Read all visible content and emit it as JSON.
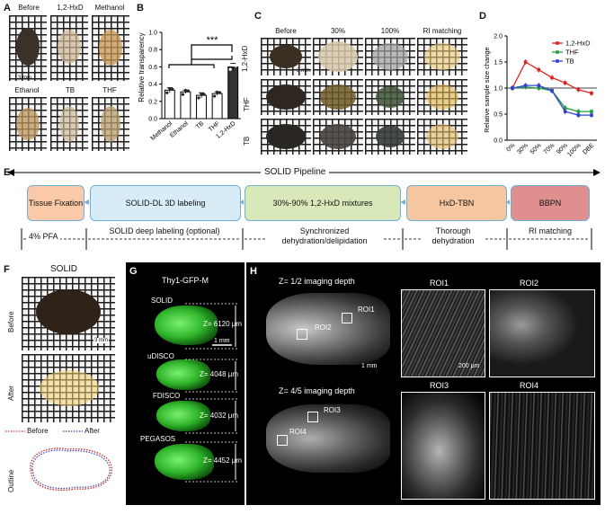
{
  "panels": {
    "A": "A",
    "B": "B",
    "C": "C",
    "D": "D",
    "E": "E",
    "F": "F",
    "G": "G",
    "H": "H"
  },
  "panelA": {
    "labels": [
      "Before",
      "1,2-HxD",
      "Methanol",
      "Ethanol",
      "TB",
      "THF"
    ],
    "scale": "3 mm"
  },
  "chart_b": {
    "type": "bar",
    "categories": [
      "Methanol",
      "Ethanol",
      "TB",
      "THF",
      "1,2-HxD"
    ],
    "values": [
      0.33,
      0.31,
      0.27,
      0.29,
      0.6
    ],
    "errors": [
      0.03,
      0.02,
      0.03,
      0.02,
      0.04
    ],
    "ylabel": "Relative transparency",
    "ylim": [
      0,
      1.0
    ],
    "yticks": [
      "0.0",
      "0.2",
      "0.4",
      "0.6",
      "0.8",
      "1.0"
    ],
    "significance": "***",
    "colors": {
      "bar": "#ffffff",
      "highlight": "#333333"
    }
  },
  "panelC": {
    "col_labels": [
      "Before",
      "30%",
      "100%",
      "RI matching"
    ],
    "row_labels": [
      "1,2-HxD",
      "THF",
      "TB"
    ],
    "scale": "3 mm"
  },
  "chart_data": {
    "type": "line",
    "ylabel": "Relative sample size change",
    "ylim": [
      0.0,
      2.0
    ],
    "yticks": [
      "0.0",
      "0.5",
      "1.0",
      "1.5",
      "2.0"
    ],
    "categories": [
      "0%",
      "30%",
      "50%",
      "70%",
      "90%",
      "100%",
      "DBE"
    ],
    "series": [
      {
        "name": "1,2-HxD",
        "color": "#e02020",
        "values": [
          1.0,
          1.5,
          1.35,
          1.2,
          1.1,
          0.97,
          0.9
        ]
      },
      {
        "name": "THF",
        "color": "#20a040",
        "values": [
          1.0,
          1.02,
          1.0,
          0.95,
          0.62,
          0.55,
          0.55
        ]
      },
      {
        "name": "TB",
        "color": "#3040d0",
        "values": [
          1.0,
          1.05,
          1.05,
          0.95,
          0.55,
          0.48,
          0.48
        ]
      }
    ]
  },
  "panelE": {
    "title": "SOLID Pipeline",
    "steps": [
      "Tissue Fixation",
      "SOLID-DL 3D labeling",
      "30%-90% 1,2-HxD mixtures",
      "HxD-TBN",
      "BBPN"
    ],
    "notes": [
      "4% PFA",
      "SOLID deep labeling (optional)",
      "Synchronized dehydration/delipidation",
      "Thorough dehydration",
      "RI matching"
    ],
    "colors": {
      "fixation": "#f9c9a8",
      "labeling": "#d8ecf7",
      "mixture": "#d8e8b8",
      "hxd": "#f6c6a0",
      "bbpn": "#e08f8f"
    }
  },
  "panelF": {
    "title": "SOLID",
    "rows": [
      "Before",
      "After",
      "Outline"
    ],
    "scale": "3 mm",
    "legend": [
      "Before",
      "After"
    ]
  },
  "panelG": {
    "title": "Thy1-GFP-M",
    "methods": [
      "SOLID",
      "uDISCO",
      "FDISCO",
      "PEGASOS"
    ],
    "depths": [
      "Z= 6120 μm",
      "Z= 4048 μm",
      "Z= 4032 μm",
      "Z= 4452 μm"
    ],
    "scale": "1 mm"
  },
  "panelH": {
    "depth1": "Z= 1/2 imaging depth",
    "depth2": "Z= 4/5  imaging depth",
    "rois": [
      "ROI1",
      "ROI2",
      "ROI3",
      "ROI4"
    ],
    "scale_large": "1 mm",
    "scale_small": "200 μm"
  }
}
